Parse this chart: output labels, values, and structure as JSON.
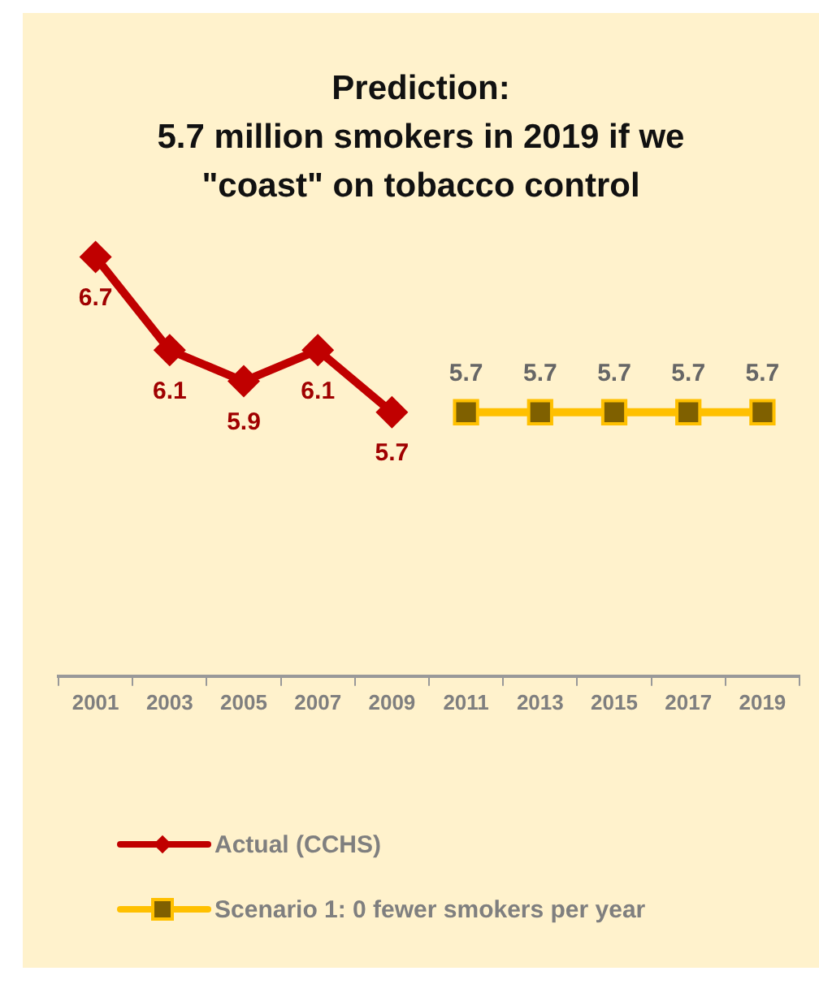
{
  "chart_data": {
    "type": "line",
    "title": "Prediction:\n5.7 million smokers in 2019 if we\n\"coast\" on tobacco control",
    "categories": [
      "2001",
      "2003",
      "2005",
      "2007",
      "2009",
      "2011",
      "2013",
      "2015",
      "2017",
      "2019"
    ],
    "series": [
      {
        "name": "Actual (CCHS)",
        "color": "#c00000",
        "marker": "diamond",
        "values": [
          6.7,
          6.1,
          5.9,
          6.1,
          5.7,
          null,
          null,
          null,
          null,
          null
        ]
      },
      {
        "name": "Scenario 1:  0 fewer smokers per year",
        "color": "#ffc000",
        "marker": "square",
        "values": [
          null,
          null,
          null,
          null,
          null,
          5.7,
          5.7,
          5.7,
          5.7,
          5.7
        ]
      }
    ],
    "tick_labels": "x",
    "data_labels": true,
    "legend": "bottom",
    "grid": false
  }
}
